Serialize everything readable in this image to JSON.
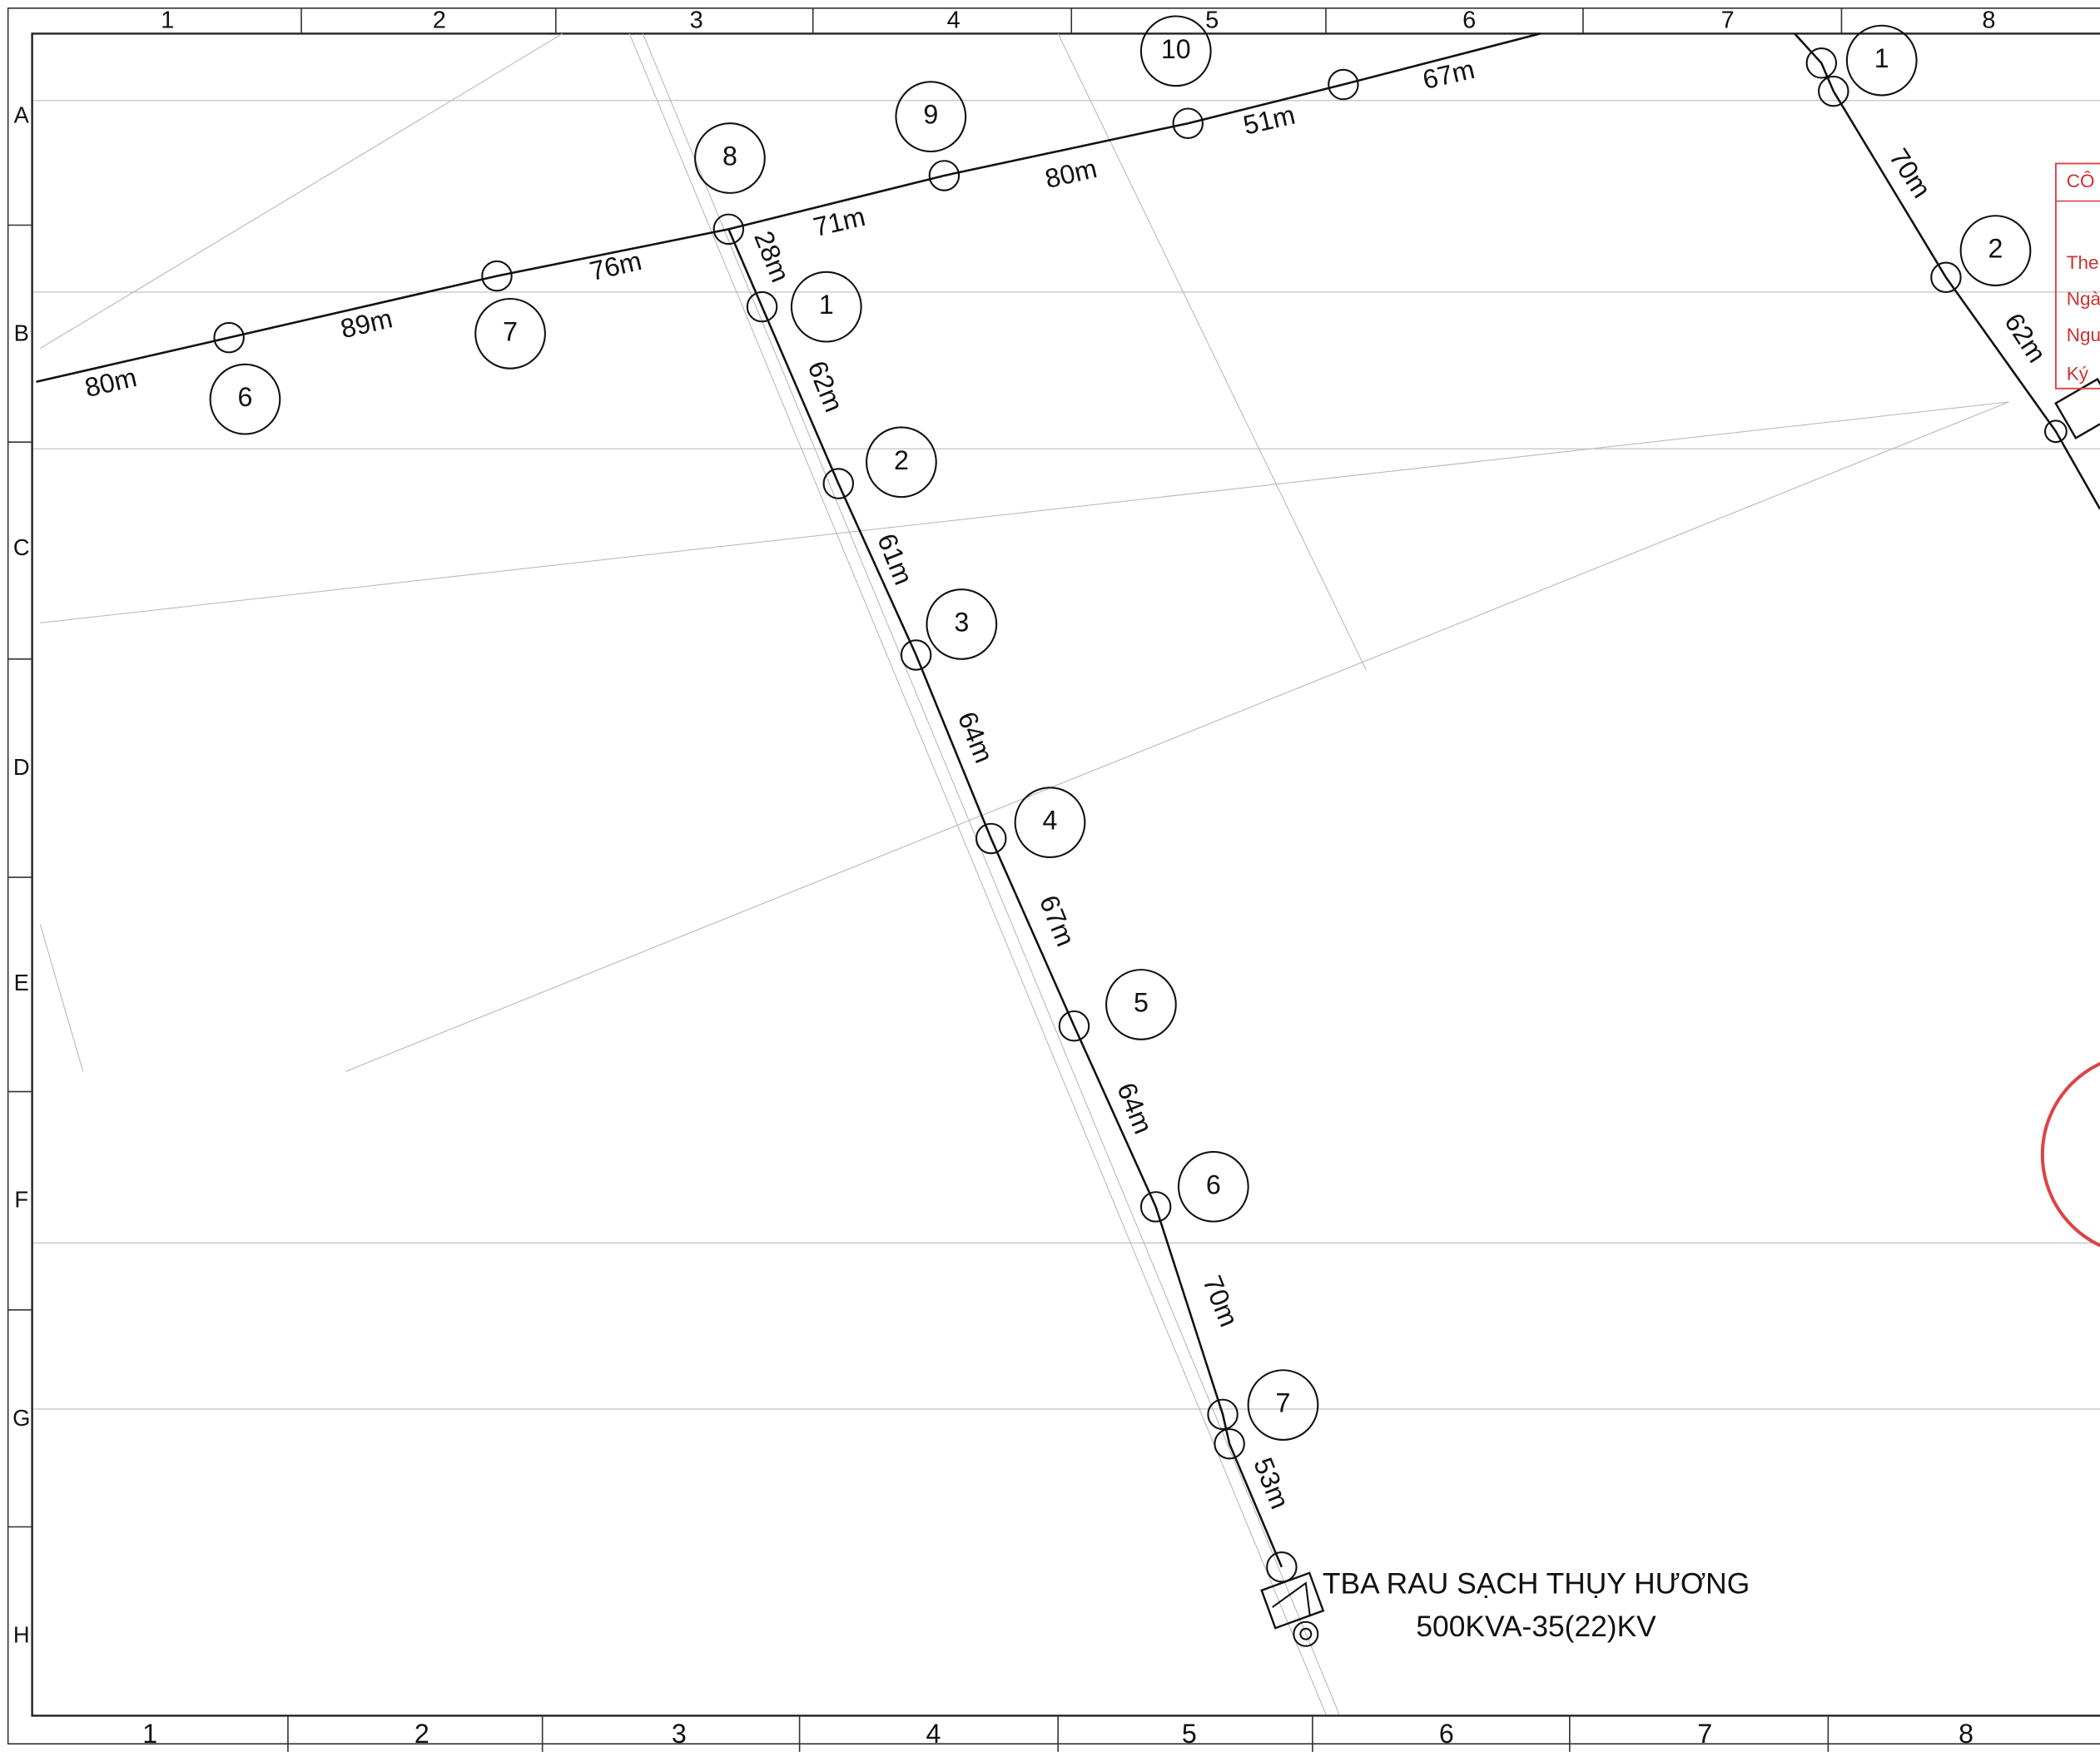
{
  "grid": {
    "top_columns": [
      "1",
      "2",
      "3",
      "4",
      "5",
      "6",
      "7",
      "8"
    ],
    "bottom_columns": [
      "1",
      "2",
      "3",
      "4",
      "5",
      "6",
      "7",
      "8"
    ],
    "rows": [
      "A",
      "B",
      "C",
      "D",
      "E",
      "F",
      "G",
      "H"
    ]
  },
  "line_a": {
    "poles": [
      "6",
      "7",
      "8",
      "9",
      "10"
    ],
    "spans": [
      "80m",
      "89m",
      "76m",
      "71m",
      "80m",
      "51m",
      "67m"
    ]
  },
  "line_b": {
    "poles": [
      "1",
      "2",
      "3",
      "4",
      "5",
      "6",
      "7"
    ],
    "spans": [
      "28m",
      "62m",
      "61m",
      "64m",
      "67m",
      "64m",
      "70m",
      "53m"
    ]
  },
  "line_c": {
    "poles": [
      "1",
      "2"
    ],
    "spans": [
      "70m",
      "62m"
    ]
  },
  "transformer": {
    "name": "TBA RAU SẠCH THỤY HƯƠNG",
    "rating": "500KVA-35(22)KV"
  },
  "stamp": {
    "lines": [
      "CÔ",
      "The",
      "Ngà",
      "Ngu",
      "Ký"
    ]
  }
}
